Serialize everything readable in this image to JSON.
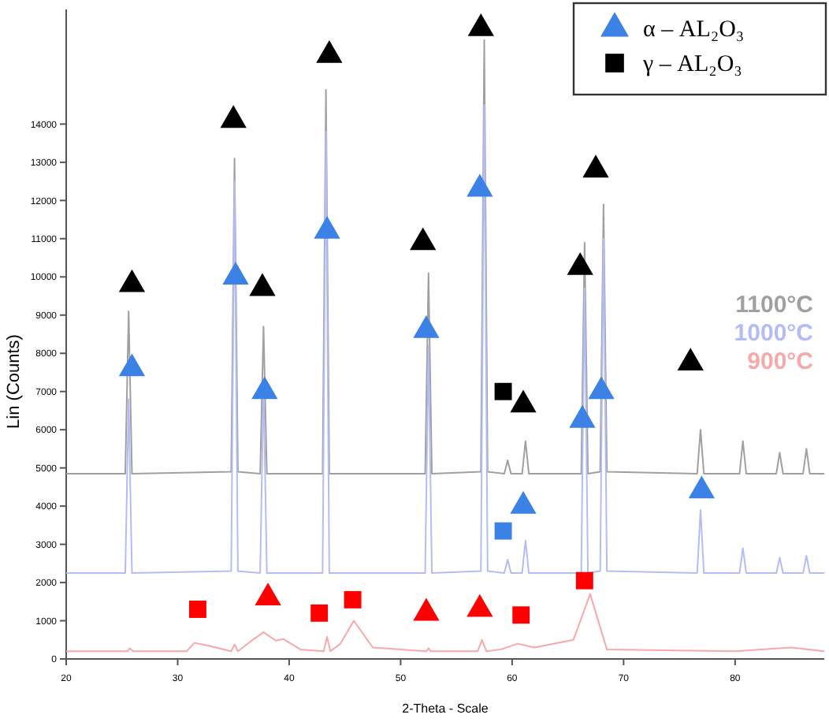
{
  "chart_data": {
    "type": "line",
    "xlabel": "2-Theta - Scale",
    "ylabel": "Lin (Counts)",
    "xlim": [
      20,
      88
    ],
    "ylim": [
      0,
      17000
    ],
    "xticks": [
      20,
      30,
      40,
      50,
      60,
      70,
      80
    ],
    "yticks": [
      0,
      1000,
      2000,
      3000,
      4000,
      5000,
      6000,
      7000,
      8000,
      9000,
      10000,
      11000,
      12000,
      13000,
      14000
    ],
    "grid": false,
    "legend": "top right",
    "series": [
      {
        "name": "1100°C",
        "color": "#a0a0a0",
        "x": [
          20,
          25.3,
          25.6,
          25.9,
          34.8,
          35.1,
          35.4,
          37.4,
          37.7,
          38.0,
          43.0,
          43.3,
          43.6,
          52.2,
          52.5,
          52.8,
          57.2,
          57.5,
          57.8,
          59.3,
          59.6,
          59.9,
          60.9,
          61.2,
          61.5,
          66.2,
          66.5,
          66.8,
          67.9,
          68.2,
          68.5,
          76.6,
          76.9,
          77.2,
          80.4,
          80.7,
          81.0,
          83.7,
          84.0,
          84.3,
          86.1,
          86.4,
          86.7,
          88
        ],
        "values": [
          4850,
          4850,
          9100,
          4850,
          4900,
          13100,
          4900,
          4850,
          8700,
          4850,
          4850,
          14900,
          4850,
          4850,
          10100,
          4850,
          4900,
          16200,
          4900,
          4850,
          5200,
          4850,
          4850,
          5700,
          4850,
          4850,
          10900,
          4850,
          4900,
          11900,
          4900,
          4850,
          6000,
          4850,
          4850,
          5700,
          4850,
          4850,
          5400,
          4850,
          4850,
          5500,
          4850,
          4850
        ]
      },
      {
        "name": "1000°C",
        "color": "#b4bcf4",
        "x": [
          20,
          25.3,
          25.6,
          25.9,
          34.8,
          35.1,
          35.4,
          37.4,
          37.7,
          38.0,
          43.0,
          43.3,
          43.6,
          52.2,
          52.5,
          52.8,
          57.2,
          57.5,
          57.8,
          59.3,
          59.6,
          59.9,
          60.9,
          61.2,
          61.5,
          66.2,
          66.5,
          66.8,
          67.9,
          68.2,
          68.5,
          76.6,
          76.9,
          77.2,
          80.4,
          80.7,
          81.0,
          83.7,
          84.0,
          84.3,
          86.1,
          86.4,
          86.7,
          88
        ],
        "values": [
          2250,
          2250,
          6800,
          2250,
          2300,
          12500,
          2300,
          2250,
          7200,
          2250,
          2250,
          13800,
          2250,
          2250,
          8200,
          2250,
          2300,
          14500,
          2300,
          2250,
          2600,
          2250,
          2250,
          3100,
          2250,
          2250,
          9700,
          2250,
          2300,
          11000,
          2300,
          2250,
          3900,
          2250,
          2250,
          2900,
          2250,
          2250,
          2650,
          2250,
          2250,
          2700,
          2250,
          2250
        ]
      },
      {
        "name": "900°C",
        "color": "#f8a8a8",
        "x": [
          20,
          25.5,
          25.7,
          26,
          30.8,
          31.5,
          33,
          34.8,
          35.1,
          35.4,
          36.5,
          37.7,
          38.8,
          39.5,
          41,
          43.1,
          43.4,
          43.7,
          44.6,
          45.8,
          47.5,
          52.3,
          52.5,
          52.7,
          56.9,
          57.3,
          57.7,
          59,
          60.5,
          62,
          65.5,
          67,
          68.5,
          80,
          85,
          88
        ],
        "values": [
          200,
          200,
          280,
          200,
          200,
          420,
          330,
          200,
          380,
          200,
          450,
          700,
          480,
          520,
          250,
          200,
          580,
          200,
          400,
          1000,
          300,
          200,
          280,
          200,
          200,
          500,
          200,
          250,
          400,
          300,
          500,
          1700,
          250,
          200,
          300,
          200
        ]
      },
      {
        "name": "α – AL₂O₃",
        "type": "scatter",
        "marker": "triangle",
        "color": "#3c82e6",
        "x": [
          25.9,
          35.0,
          37.6,
          43.6,
          52.0,
          57.2,
          61.0,
          66.1,
          67.5,
          76.0,
          25.9,
          35.2,
          37.8,
          43.4,
          52.3,
          57.1,
          61.0,
          66.3,
          68.0,
          77.0,
          38.1,
          52.3,
          57.1
        ],
        "values": [
          9800,
          14100,
          9700,
          15800,
          10900,
          16500,
          6650,
          10250,
          12800,
          7750,
          7600,
          10000,
          7000,
          11200,
          8600,
          12300,
          4000,
          6250,
          7000,
          4400,
          1600,
          1200,
          1300
        ],
        "colors": [
          "#000000",
          "#000000",
          "#000000",
          "#000000",
          "#000000",
          "#000000",
          "#000000",
          "#000000",
          "#000000",
          "#000000",
          "#3c82e6",
          "#3c82e6",
          "#3c82e6",
          "#3c82e6",
          "#3c82e6",
          "#3c82e6",
          "#3c82e6",
          "#3c82e6",
          "#3c82e6",
          "#3c82e6",
          "#ff0000",
          "#ff0000",
          "#ff0000"
        ]
      },
      {
        "name": "γ – AL₂O₃",
        "type": "scatter",
        "marker": "square",
        "color": "#000000",
        "x": [
          59.2,
          59.2,
          31.8,
          42.7,
          45.7,
          60.8,
          66.5
        ],
        "values": [
          7000,
          3350,
          1300,
          1200,
          1550,
          1150,
          2050
        ],
        "colors": [
          "#000000",
          "#3c82e6",
          "#ff0000",
          "#ff0000",
          "#ff0000",
          "#ff0000",
          "#ff0000"
        ]
      }
    ]
  }
}
